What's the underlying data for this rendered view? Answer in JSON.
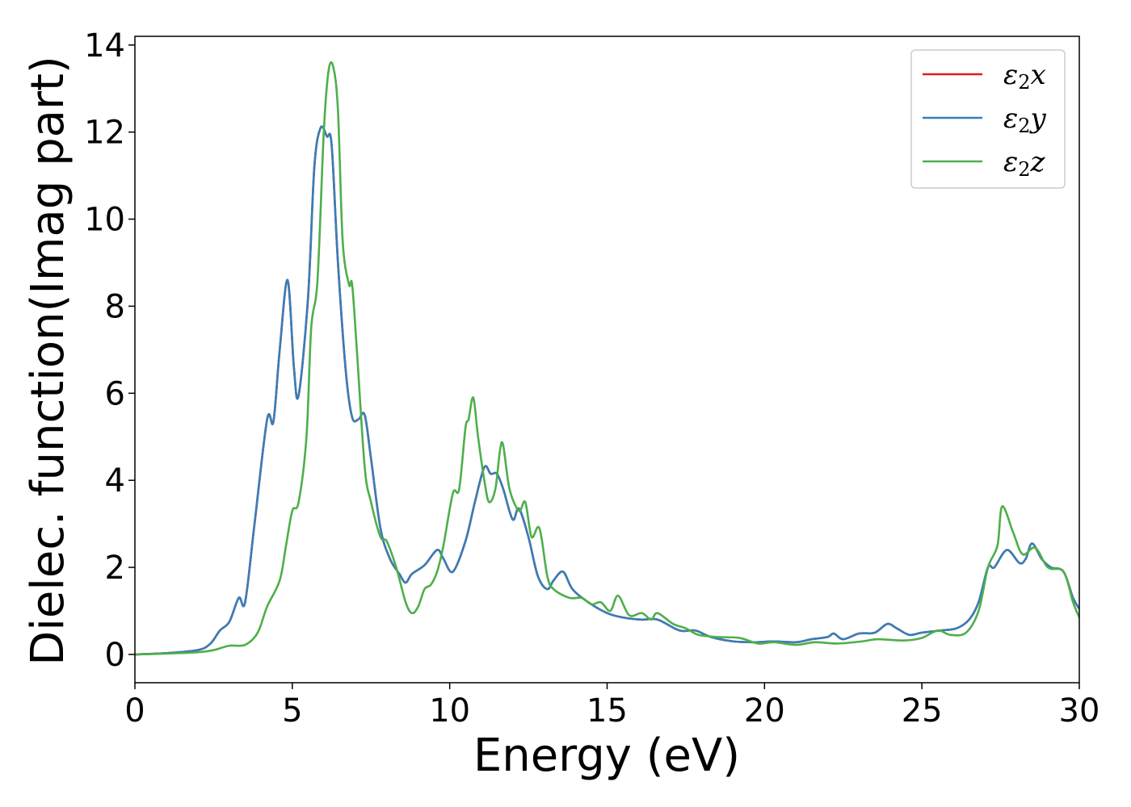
{
  "chart_data": {
    "type": "line",
    "title": "",
    "xlabel": "Energy (eV)",
    "ylabel": "Dielec. function(Imag part)",
    "xlim": [
      0,
      30
    ],
    "ylim": [
      -0.65,
      14.2
    ],
    "xticks": [
      0,
      5,
      10,
      15,
      20,
      25,
      30
    ],
    "xtick_labels": [
      "0",
      "5",
      "10",
      "15",
      "20",
      "25",
      "30"
    ],
    "yticks": [
      0,
      2,
      4,
      6,
      8,
      10,
      12,
      14
    ],
    "ytick_labels": [
      "0",
      "2",
      "4",
      "6",
      "8",
      "10",
      "12",
      "14"
    ],
    "grid": false,
    "legend_position": "top-right",
    "series": [
      {
        "name": "ε2x",
        "base": "ε",
        "sub": "2",
        "suffix": "x",
        "color": "#e41a1c",
        "points": [
          [
            0,
            0
          ],
          [
            1,
            0.03
          ],
          [
            2,
            0.1
          ],
          [
            2.4,
            0.25
          ],
          [
            2.7,
            0.55
          ],
          [
            3,
            0.75
          ],
          [
            3.3,
            1.3
          ],
          [
            3.5,
            1.2
          ],
          [
            3.8,
            3.0
          ],
          [
            4.2,
            5.4
          ],
          [
            4.4,
            5.35
          ],
          [
            4.6,
            7.0
          ],
          [
            4.85,
            8.6
          ],
          [
            5.05,
            6.6
          ],
          [
            5.2,
            5.95
          ],
          [
            5.5,
            8.2
          ],
          [
            5.7,
            11.2
          ],
          [
            5.9,
            12.1
          ],
          [
            6.1,
            11.9
          ],
          [
            6.25,
            11.7
          ],
          [
            6.45,
            9.0
          ],
          [
            6.7,
            6.5
          ],
          [
            6.9,
            5.45
          ],
          [
            7.1,
            5.4
          ],
          [
            7.3,
            5.5
          ],
          [
            7.5,
            4.5
          ],
          [
            7.8,
            2.9
          ],
          [
            8.1,
            2.2
          ],
          [
            8.4,
            1.85
          ],
          [
            8.6,
            1.65
          ],
          [
            8.8,
            1.85
          ],
          [
            9.2,
            2.05
          ],
          [
            9.6,
            2.4
          ],
          [
            9.8,
            2.2
          ],
          [
            10.1,
            1.9
          ],
          [
            10.5,
            2.6
          ],
          [
            10.8,
            3.5
          ],
          [
            11.1,
            4.3
          ],
          [
            11.3,
            4.15
          ],
          [
            11.5,
            4.15
          ],
          [
            11.7,
            3.8
          ],
          [
            12,
            3.1
          ],
          [
            12.2,
            3.35
          ],
          [
            12.5,
            2.7
          ],
          [
            12.8,
            1.8
          ],
          [
            13.1,
            1.5
          ],
          [
            13.3,
            1.7
          ],
          [
            13.6,
            1.9
          ],
          [
            13.9,
            1.5
          ],
          [
            14.4,
            1.2
          ],
          [
            15,
            0.95
          ],
          [
            15.5,
            0.85
          ],
          [
            16.1,
            0.8
          ],
          [
            16.6,
            0.8
          ],
          [
            17.3,
            0.55
          ],
          [
            17.8,
            0.55
          ],
          [
            18.3,
            0.4
          ],
          [
            19,
            0.3
          ],
          [
            19.7,
            0.28
          ],
          [
            20.3,
            0.3
          ],
          [
            21,
            0.28
          ],
          [
            21.5,
            0.35
          ],
          [
            22,
            0.4
          ],
          [
            22.2,
            0.48
          ],
          [
            22.5,
            0.35
          ],
          [
            23,
            0.48
          ],
          [
            23.5,
            0.5
          ],
          [
            23.9,
            0.7
          ],
          [
            24.2,
            0.6
          ],
          [
            24.6,
            0.45
          ],
          [
            25,
            0.5
          ],
          [
            25.6,
            0.55
          ],
          [
            26.1,
            0.6
          ],
          [
            26.5,
            0.8
          ],
          [
            26.8,
            1.2
          ],
          [
            27.1,
            2.0
          ],
          [
            27.3,
            2.0
          ],
          [
            27.7,
            2.4
          ],
          [
            28.1,
            2.1
          ],
          [
            28.3,
            2.2
          ],
          [
            28.5,
            2.55
          ],
          [
            28.8,
            2.2
          ],
          [
            29.1,
            2.0
          ],
          [
            29.5,
            1.9
          ],
          [
            29.8,
            1.3
          ],
          [
            30,
            1.05
          ]
        ]
      },
      {
        "name": "ε2y",
        "base": "ε",
        "sub": "2",
        "suffix": "y",
        "color": "#377eb8",
        "points": [
          [
            0,
            0
          ],
          [
            1,
            0.03
          ],
          [
            2,
            0.1
          ],
          [
            2.4,
            0.25
          ],
          [
            2.7,
            0.55
          ],
          [
            3,
            0.75
          ],
          [
            3.3,
            1.3
          ],
          [
            3.5,
            1.2
          ],
          [
            3.8,
            3.0
          ],
          [
            4.2,
            5.4
          ],
          [
            4.4,
            5.35
          ],
          [
            4.6,
            7.0
          ],
          [
            4.85,
            8.6
          ],
          [
            5.05,
            6.6
          ],
          [
            5.2,
            5.95
          ],
          [
            5.5,
            8.2
          ],
          [
            5.7,
            11.2
          ],
          [
            5.9,
            12.1
          ],
          [
            6.1,
            11.9
          ],
          [
            6.25,
            11.7
          ],
          [
            6.45,
            9.0
          ],
          [
            6.7,
            6.5
          ],
          [
            6.9,
            5.45
          ],
          [
            7.1,
            5.4
          ],
          [
            7.3,
            5.5
          ],
          [
            7.5,
            4.5
          ],
          [
            7.8,
            2.9
          ],
          [
            8.1,
            2.2
          ],
          [
            8.4,
            1.85
          ],
          [
            8.6,
            1.65
          ],
          [
            8.8,
            1.85
          ],
          [
            9.2,
            2.05
          ],
          [
            9.6,
            2.4
          ],
          [
            9.8,
            2.2
          ],
          [
            10.1,
            1.9
          ],
          [
            10.5,
            2.6
          ],
          [
            10.8,
            3.5
          ],
          [
            11.1,
            4.3
          ],
          [
            11.3,
            4.15
          ],
          [
            11.5,
            4.15
          ],
          [
            11.7,
            3.8
          ],
          [
            12,
            3.1
          ],
          [
            12.2,
            3.35
          ],
          [
            12.5,
            2.7
          ],
          [
            12.8,
            1.8
          ],
          [
            13.1,
            1.5
          ],
          [
            13.3,
            1.7
          ],
          [
            13.6,
            1.9
          ],
          [
            13.9,
            1.5
          ],
          [
            14.4,
            1.2
          ],
          [
            15,
            0.95
          ],
          [
            15.5,
            0.85
          ],
          [
            16.1,
            0.8
          ],
          [
            16.6,
            0.8
          ],
          [
            17.3,
            0.55
          ],
          [
            17.8,
            0.55
          ],
          [
            18.3,
            0.4
          ],
          [
            19,
            0.3
          ],
          [
            19.7,
            0.28
          ],
          [
            20.3,
            0.3
          ],
          [
            21,
            0.28
          ],
          [
            21.5,
            0.35
          ],
          [
            22,
            0.4
          ],
          [
            22.2,
            0.48
          ],
          [
            22.5,
            0.35
          ],
          [
            23,
            0.48
          ],
          [
            23.5,
            0.5
          ],
          [
            23.9,
            0.7
          ],
          [
            24.2,
            0.6
          ],
          [
            24.6,
            0.45
          ],
          [
            25,
            0.5
          ],
          [
            25.6,
            0.55
          ],
          [
            26.1,
            0.6
          ],
          [
            26.5,
            0.8
          ],
          [
            26.8,
            1.2
          ],
          [
            27.1,
            2.0
          ],
          [
            27.3,
            2.0
          ],
          [
            27.7,
            2.4
          ],
          [
            28.1,
            2.1
          ],
          [
            28.3,
            2.2
          ],
          [
            28.5,
            2.55
          ],
          [
            28.8,
            2.2
          ],
          [
            29.1,
            2.0
          ],
          [
            29.5,
            1.9
          ],
          [
            29.8,
            1.3
          ],
          [
            30,
            1.05
          ]
        ]
      },
      {
        "name": "ε2z",
        "base": "ε",
        "sub": "2",
        "suffix": "z",
        "color": "#4daf4a",
        "points": [
          [
            0,
            0
          ],
          [
            1,
            0.02
          ],
          [
            2,
            0.05
          ],
          [
            2.5,
            0.1
          ],
          [
            3,
            0.2
          ],
          [
            3.5,
            0.22
          ],
          [
            3.9,
            0.5
          ],
          [
            4.2,
            1.1
          ],
          [
            4.6,
            1.7
          ],
          [
            4.8,
            2.5
          ],
          [
            5,
            3.3
          ],
          [
            5.2,
            3.5
          ],
          [
            5.45,
            5.0
          ],
          [
            5.6,
            7.5
          ],
          [
            5.8,
            8.6
          ],
          [
            6.0,
            12.0
          ],
          [
            6.15,
            13.4
          ],
          [
            6.3,
            13.5
          ],
          [
            6.45,
            12.5
          ],
          [
            6.6,
            9.5
          ],
          [
            6.8,
            8.5
          ],
          [
            6.9,
            8.5
          ],
          [
            7.05,
            7.0
          ],
          [
            7.3,
            4.3
          ],
          [
            7.5,
            3.5
          ],
          [
            7.8,
            2.7
          ],
          [
            8.0,
            2.6
          ],
          [
            8.3,
            2.0
          ],
          [
            8.6,
            1.2
          ],
          [
            8.8,
            0.95
          ],
          [
            9.0,
            1.1
          ],
          [
            9.2,
            1.5
          ],
          [
            9.4,
            1.6
          ],
          [
            9.6,
            1.9
          ],
          [
            9.8,
            2.5
          ],
          [
            10.1,
            3.7
          ],
          [
            10.3,
            3.8
          ],
          [
            10.5,
            5.2
          ],
          [
            10.6,
            5.4
          ],
          [
            10.75,
            5.9
          ],
          [
            10.9,
            5.0
          ],
          [
            11.1,
            4.0
          ],
          [
            11.25,
            3.5
          ],
          [
            11.45,
            3.8
          ],
          [
            11.6,
            4.7
          ],
          [
            11.7,
            4.8
          ],
          [
            11.9,
            3.8
          ],
          [
            12.2,
            3.3
          ],
          [
            12.4,
            3.5
          ],
          [
            12.6,
            2.7
          ],
          [
            12.85,
            2.9
          ],
          [
            13.1,
            1.8
          ],
          [
            13.3,
            1.5
          ],
          [
            13.8,
            1.3
          ],
          [
            14.2,
            1.3
          ],
          [
            14.5,
            1.15
          ],
          [
            14.8,
            1.2
          ],
          [
            15.1,
            1.0
          ],
          [
            15.35,
            1.35
          ],
          [
            15.7,
            0.9
          ],
          [
            16.1,
            0.95
          ],
          [
            16.4,
            0.8
          ],
          [
            16.6,
            0.95
          ],
          [
            17.1,
            0.7
          ],
          [
            17.5,
            0.6
          ],
          [
            17.9,
            0.45
          ],
          [
            18.5,
            0.4
          ],
          [
            19.2,
            0.38
          ],
          [
            19.8,
            0.25
          ],
          [
            20.3,
            0.28
          ],
          [
            21,
            0.22
          ],
          [
            21.6,
            0.28
          ],
          [
            22.3,
            0.25
          ],
          [
            23.1,
            0.3
          ],
          [
            23.6,
            0.35
          ],
          [
            24.4,
            0.32
          ],
          [
            25,
            0.38
          ],
          [
            25.5,
            0.55
          ],
          [
            25.9,
            0.45
          ],
          [
            26.4,
            0.5
          ],
          [
            26.8,
            1.0
          ],
          [
            27.1,
            2.0
          ],
          [
            27.4,
            2.5
          ],
          [
            27.55,
            3.4
          ],
          [
            27.9,
            2.8
          ],
          [
            28.2,
            2.3
          ],
          [
            28.6,
            2.45
          ],
          [
            29.0,
            2.0
          ],
          [
            29.5,
            1.9
          ],
          [
            29.8,
            1.2
          ],
          [
            30,
            0.85
          ]
        ]
      }
    ]
  }
}
